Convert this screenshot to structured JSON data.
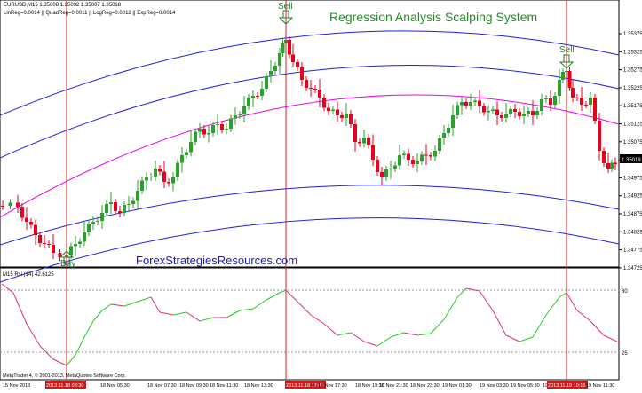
{
  "header": {
    "symbol_line": "EURUSD,M15  1.35008 1.35032 1.35007 1.35018",
    "indicator_line": "LinReg=0.0014 || QuadReg=0.0011 || LogReg=0.0012 || ExpReg=0.0014"
  },
  "title": "Regression Analysis Scalping System",
  "watermark": "ForexStrategiesResources.com",
  "signals": {
    "sell1": "Sell",
    "sell2": "Sell",
    "buy": "Buy"
  },
  "price_axis": [
    "1.35375",
    "1.35325",
    "1.35275",
    "1.35225",
    "1.35175",
    "1.35125",
    "1.35075",
    "1.35025",
    "1.34975",
    "1.34925",
    "1.34875",
    "1.34825",
    "1.34775",
    "1.34725"
  ],
  "current_price": "1.35018",
  "rsi": {
    "label": "M15  Rsi (14) 42.6125",
    "axis": [
      "80",
      "25"
    ],
    "copyright": "MetaTrader 4, © 2001-2013, MetaQuotes Software Corp."
  },
  "time_axis": [
    "15 Nov 2013",
    "2013.11.18 03:30",
    "18 Nov 05:30",
    "18 Nov 07:30",
    "18 Nov 09:30",
    "18 Nov 11:30",
    "18 Nov 13:30",
    "2013.11.18 17:00",
    "18 Nov 17:30",
    "18 Nov 19:30",
    "18 Nov 21:30",
    "18 Nov 23:30",
    "19 Nov 01:30",
    "19 Nov 03:30",
    "19 Nov 05:30",
    "19 Nov 07:30",
    "2013.11.19 10:15",
    "19 Nov 11:30"
  ],
  "colors": {
    "bull": "#2ca02c",
    "bear": "#e8001c",
    "channel": "#1f1fe0",
    "regression": "#f000f0",
    "rsi_up": "#22cc22",
    "rsi_down": "#e0306a",
    "vline": "#cc2020",
    "title": "#228b22"
  }
}
